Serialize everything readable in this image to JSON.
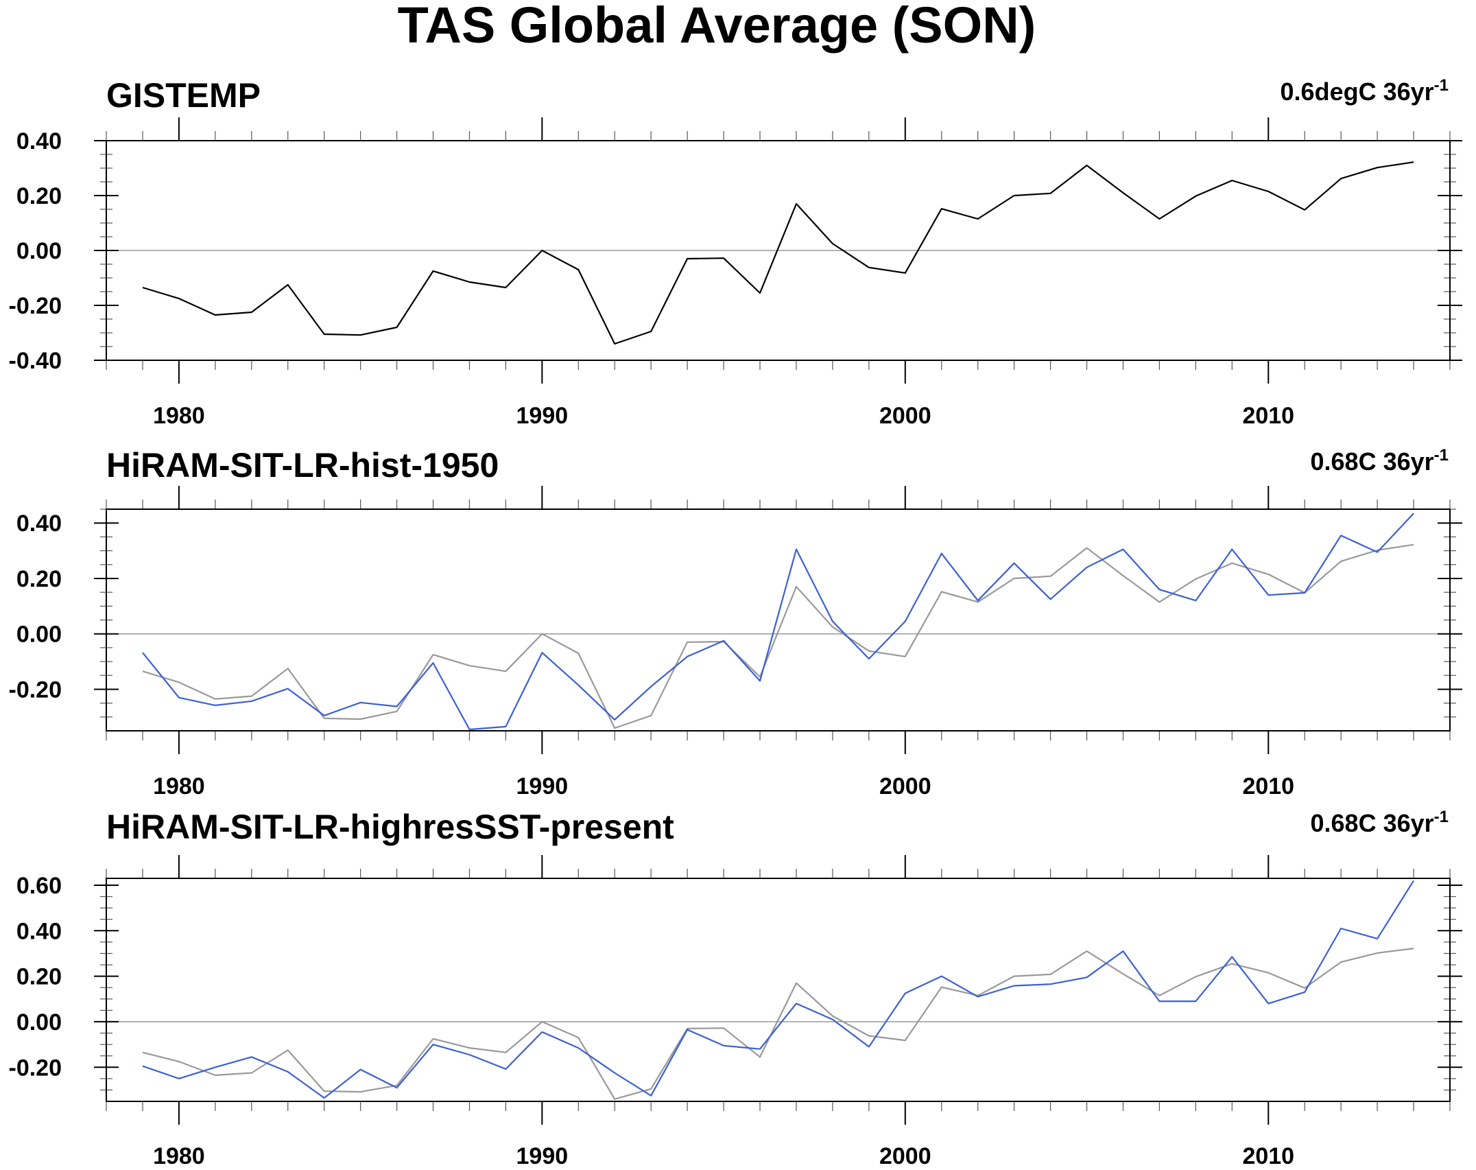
{
  "figure_title": "TAS Global Average (SON)",
  "chart_data": [
    {
      "type": "line",
      "title": "GISTEMP",
      "annotation": {
        "text": "0.6degC 36yr",
        "superscript": "-1"
      },
      "x": [
        1979,
        1980,
        1981,
        1982,
        1983,
        1984,
        1985,
        1986,
        1987,
        1988,
        1989,
        1990,
        1991,
        1992,
        1993,
        1994,
        1995,
        1996,
        1997,
        1998,
        1999,
        2000,
        2001,
        2002,
        2003,
        2004,
        2005,
        2006,
        2007,
        2008,
        2009,
        2010,
        2011,
        2012,
        2013,
        2014
      ],
      "xlim": [
        1978,
        2015
      ],
      "ylim": [
        -0.4,
        0.4
      ],
      "x_ticks": [
        1980,
        1990,
        2000,
        2010
      ],
      "x_tick_labels": [
        "1980",
        "1990",
        "2000",
        "2010"
      ],
      "y_ticks": [
        -0.4,
        -0.2,
        0.0,
        0.2,
        0.4
      ],
      "y_tick_labels": [
        "-0.40",
        "-0.20",
        "0.00",
        "0.20",
        "0.40"
      ],
      "series": [
        {
          "color": "#000000",
          "values": [
            -0.135,
            -0.175,
            -0.235,
            -0.225,
            -0.125,
            -0.305,
            -0.308,
            -0.28,
            -0.075,
            -0.115,
            -0.135,
            0.0,
            -0.07,
            -0.34,
            -0.295,
            -0.03,
            -0.028,
            -0.155,
            0.17,
            0.025,
            -0.062,
            -0.082,
            0.152,
            0.115,
            0.2,
            0.208,
            0.31,
            0.21,
            0.115,
            0.198,
            0.255,
            0.215,
            0.148,
            0.262,
            0.302,
            0.322
          ]
        }
      ]
    },
    {
      "type": "line",
      "title": "HiRAM-SIT-LR-hist-1950",
      "annotation": {
        "text": "0.68C 36yr",
        "superscript": "-1"
      },
      "x": [
        1979,
        1980,
        1981,
        1982,
        1983,
        1984,
        1985,
        1986,
        1987,
        1988,
        1989,
        1990,
        1991,
        1992,
        1993,
        1994,
        1995,
        1996,
        1997,
        1998,
        1999,
        2000,
        2001,
        2002,
        2003,
        2004,
        2005,
        2006,
        2007,
        2008,
        2009,
        2010,
        2011,
        2012,
        2013,
        2014
      ],
      "xlim": [
        1978,
        2015
      ],
      "ylim": [
        -0.35,
        0.45
      ],
      "x_ticks": [
        1980,
        1990,
        2000,
        2010
      ],
      "x_tick_labels": [
        "1980",
        "1990",
        "2000",
        "2010"
      ],
      "y_ticks": [
        -0.2,
        0.0,
        0.2,
        0.4
      ],
      "y_tick_labels": [
        "-0.20",
        "0.00",
        "0.20",
        "0.40"
      ],
      "series": [
        {
          "color": "#999999",
          "values": [
            -0.135,
            -0.175,
            -0.235,
            -0.225,
            -0.125,
            -0.305,
            -0.308,
            -0.28,
            -0.075,
            -0.115,
            -0.135,
            0.0,
            -0.07,
            -0.34,
            -0.295,
            -0.03,
            -0.028,
            -0.155,
            0.17,
            0.025,
            -0.062,
            -0.082,
            0.152,
            0.115,
            0.2,
            0.208,
            0.31,
            0.21,
            0.115,
            0.198,
            0.255,
            0.215,
            0.148,
            0.262,
            0.302,
            0.322
          ]
        },
        {
          "color": "#3b5fd4",
          "values": [
            -0.068,
            -0.23,
            -0.258,
            -0.243,
            -0.198,
            -0.295,
            -0.248,
            -0.262,
            -0.105,
            -0.345,
            -0.335,
            -0.068,
            -0.185,
            -0.31,
            -0.19,
            -0.082,
            -0.025,
            -0.17,
            0.305,
            0.045,
            -0.09,
            0.045,
            0.29,
            0.12,
            0.255,
            0.125,
            0.24,
            0.305,
            0.16,
            0.12,
            0.305,
            0.14,
            0.148,
            0.355,
            0.295,
            0.435
          ]
        }
      ]
    },
    {
      "type": "line",
      "title": "HiRAM-SIT-LR-highresSST-present",
      "annotation": {
        "text": "0.68C 36yr",
        "superscript": "-1"
      },
      "x": [
        1979,
        1980,
        1981,
        1982,
        1983,
        1984,
        1985,
        1986,
        1987,
        1988,
        1989,
        1990,
        1991,
        1992,
        1993,
        1994,
        1995,
        1996,
        1997,
        1998,
        1999,
        2000,
        2001,
        2002,
        2003,
        2004,
        2005,
        2006,
        2007,
        2008,
        2009,
        2010,
        2011,
        2012,
        2013,
        2014
      ],
      "xlim": [
        1978,
        2015
      ],
      "ylim": [
        -0.35,
        0.63
      ],
      "x_ticks": [
        1980,
        1990,
        2000,
        2010
      ],
      "x_tick_labels": [
        "1980",
        "1990",
        "2000",
        "2010"
      ],
      "y_ticks": [
        -0.2,
        0.0,
        0.2,
        0.4,
        0.6
      ],
      "y_tick_labels": [
        "-0.20",
        "0.00",
        "0.20",
        "0.40",
        "0.60"
      ],
      "series": [
        {
          "color": "#999999",
          "values": [
            -0.135,
            -0.175,
            -0.235,
            -0.225,
            -0.125,
            -0.305,
            -0.308,
            -0.28,
            -0.075,
            -0.115,
            -0.135,
            0.0,
            -0.07,
            -0.34,
            -0.295,
            -0.03,
            -0.028,
            -0.155,
            0.17,
            0.025,
            -0.062,
            -0.082,
            0.152,
            0.115,
            0.2,
            0.208,
            0.31,
            0.21,
            0.115,
            0.198,
            0.255,
            0.215,
            0.148,
            0.262,
            0.302,
            0.322
          ]
        },
        {
          "color": "#3b5fd4",
          "values": [
            -0.195,
            -0.25,
            -0.2,
            -0.155,
            -0.22,
            -0.335,
            -0.21,
            -0.29,
            -0.1,
            -0.145,
            -0.208,
            -0.045,
            -0.115,
            -0.225,
            -0.325,
            -0.035,
            -0.105,
            -0.12,
            0.08,
            0.01,
            -0.11,
            0.125,
            0.2,
            0.11,
            0.158,
            0.165,
            0.195,
            0.31,
            0.09,
            0.09,
            0.285,
            0.08,
            0.13,
            0.41,
            0.365,
            0.62
          ]
        }
      ]
    }
  ]
}
